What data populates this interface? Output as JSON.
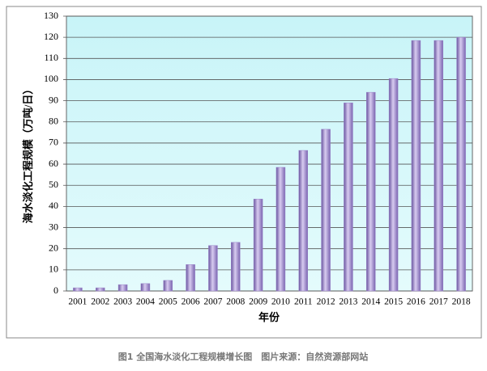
{
  "chart_data": {
    "type": "bar",
    "y_label": "海水淡化工程规模（万吨/日）",
    "x_label": "年份",
    "caption": "图1 全国海水淡化工程规模增长图　图片来源：自然资源部网站",
    "categories": [
      "2001",
      "2002",
      "2003",
      "2004",
      "2005",
      "2006",
      "2007",
      "2008",
      "2009",
      "2010",
      "2011",
      "2012",
      "2013",
      "2014",
      "2015",
      "2016",
      "2017",
      "2018"
    ],
    "values": [
      1.5,
      1.5,
      3,
      3.5,
      5,
      12.5,
      21.5,
      23,
      43.5,
      58.5,
      66.5,
      76.5,
      89,
      94,
      100.5,
      118.5,
      118.5,
      120
    ],
    "color": "#9b85c9",
    "ylim": [
      0,
      130
    ],
    "yticks": [
      0,
      10,
      20,
      30,
      40,
      50,
      60,
      70,
      80,
      90,
      100,
      110,
      120,
      130
    ],
    "grid": true
  }
}
